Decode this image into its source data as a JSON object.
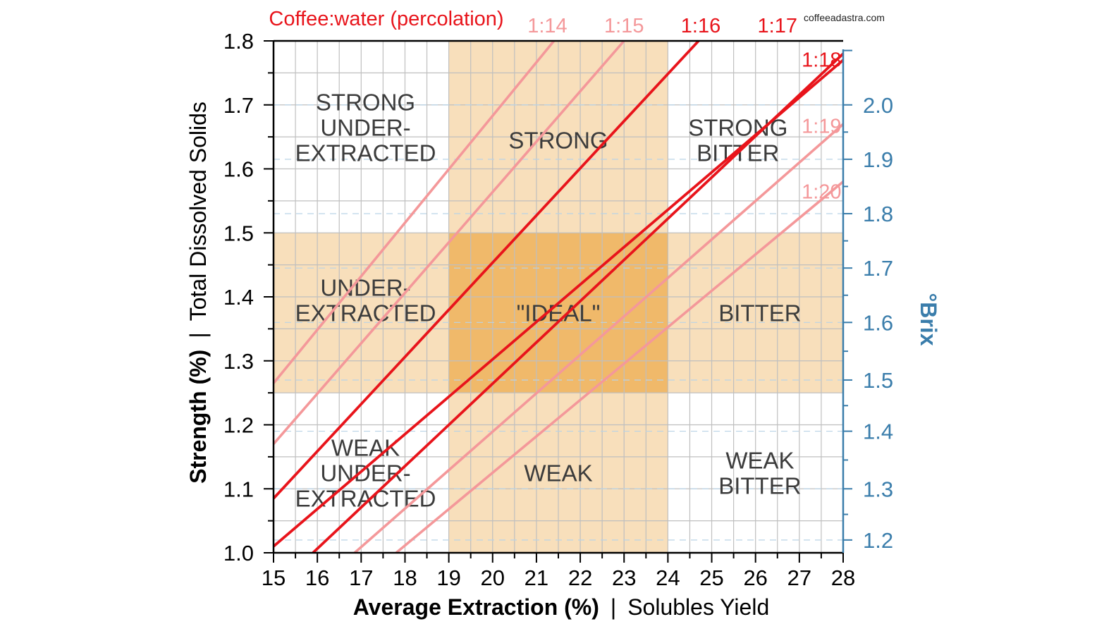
{
  "chart_data": {
    "type": "line",
    "title": "Coffee:water (percolation)",
    "watermark": "coffeeadastra.com",
    "xlabel_bold": "Average Extraction (%)",
    "xlabel_rest": "Solubles Yield",
    "ylabel_bold": "Strength (%)",
    "ylabel_rest": "Total Dissolved Solids",
    "y2label": "°Brix",
    "separator": "|",
    "xlim": [
      15,
      28
    ],
    "ylim": [
      1.0,
      1.8
    ],
    "xticks": [
      "15",
      "16",
      "17",
      "18",
      "19",
      "20",
      "21",
      "22",
      "23",
      "24",
      "25",
      "26",
      "27",
      "28"
    ],
    "yticks": [
      "1.0",
      "1.1",
      "1.2",
      "1.3",
      "1.4",
      "1.5",
      "1.6",
      "1.7",
      "1.8"
    ],
    "y2ticks": [
      {
        "label": "1.2",
        "tds": 1.02
      },
      {
        "label": "1.3",
        "tds": 1.1
      },
      {
        "label": "1.4",
        "tds": 1.19
      },
      {
        "label": "1.5",
        "tds": 1.27
      },
      {
        "label": "1.6",
        "tds": 1.36
      },
      {
        "label": "1.7",
        "tds": 1.445
      },
      {
        "label": "1.8",
        "tds": 1.53
      },
      {
        "label": "1.9",
        "tds": 1.615
      },
      {
        "label": "2.0",
        "tds": 1.7
      }
    ],
    "colors": {
      "strong_line": "#e8141b",
      "light_line": "#f4989a",
      "band": "#f8dfbb",
      "ideal": "#f0b96a",
      "right_axis": "#3a7dab"
    },
    "series": [
      {
        "name": "1:14",
        "x": [
          15,
          21.4
        ],
        "y": [
          1.265,
          1.8
        ],
        "style": "light"
      },
      {
        "name": "1:15",
        "x": [
          15,
          23.0
        ],
        "y": [
          1.17,
          1.8
        ],
        "style": "light"
      },
      {
        "name": "1:16",
        "x": [
          15,
          24.7
        ],
        "y": [
          1.085,
          1.8
        ],
        "style": "strong"
      },
      {
        "name": "1:17",
        "x": [
          15,
          28
        ],
        "y": [
          1.01,
          1.77
        ],
        "style": "strong"
      },
      {
        "name": "1:18",
        "x": [
          15.9,
          28
        ],
        "y": [
          1.0,
          1.78
        ],
        "style": "strong"
      },
      {
        "name": "1:19",
        "x": [
          16.85,
          28
        ],
        "y": [
          1.0,
          1.67
        ],
        "style": "light"
      },
      {
        "name": "1:20",
        "x": [
          17.8,
          28
        ],
        "y": [
          1.0,
          1.58
        ],
        "style": "light"
      }
    ],
    "ratio_labels": [
      {
        "text": "1:14",
        "x": 21.25,
        "y": 1.824,
        "style": "light"
      },
      {
        "text": "1:15",
        "x": 23.0,
        "y": 1.824,
        "style": "light"
      },
      {
        "text": "1:16",
        "x": 24.75,
        "y": 1.824,
        "style": "strong"
      },
      {
        "text": "1:17",
        "x": 26.5,
        "y": 1.824,
        "style": "strong"
      },
      {
        "text": "1:18",
        "x": 27.22,
        "y": 1.771,
        "style": "strong"
      },
      {
        "text": "1:19",
        "x": 27.22,
        "y": 1.667,
        "style": "light"
      },
      {
        "text": "1:20",
        "x": 27.22,
        "y": 1.565,
        "style": "light"
      }
    ],
    "regions": [
      {
        "lines": [
          "STRONG",
          "UNDER-",
          "EXTRACTED"
        ],
        "x": 17.1,
        "y": 1.665
      },
      {
        "lines": [
          "STRONG"
        ],
        "x": 21.5,
        "y": 1.645
      },
      {
        "lines": [
          "STRONG",
          "BITTER"
        ],
        "x": 25.6,
        "y": 1.645
      },
      {
        "lines": [
          "UNDER-",
          "EXTRACTED"
        ],
        "x": 17.1,
        "y": 1.395
      },
      {
        "lines": [
          "\"IDEAL\""
        ],
        "x": 21.5,
        "y": 1.375
      },
      {
        "lines": [
          "BITTER"
        ],
        "x": 26.1,
        "y": 1.375
      },
      {
        "lines": [
          "WEAK",
          "UNDER-",
          "EXTRACTED"
        ],
        "x": 17.1,
        "y": 1.125
      },
      {
        "lines": [
          "WEAK"
        ],
        "x": 21.5,
        "y": 1.125
      },
      {
        "lines": [
          "WEAK",
          "BITTER"
        ],
        "x": 26.1,
        "y": 1.125
      }
    ],
    "bands": {
      "extraction": [
        19,
        24
      ],
      "strength": [
        1.25,
        1.5
      ]
    },
    "grid": true
  }
}
